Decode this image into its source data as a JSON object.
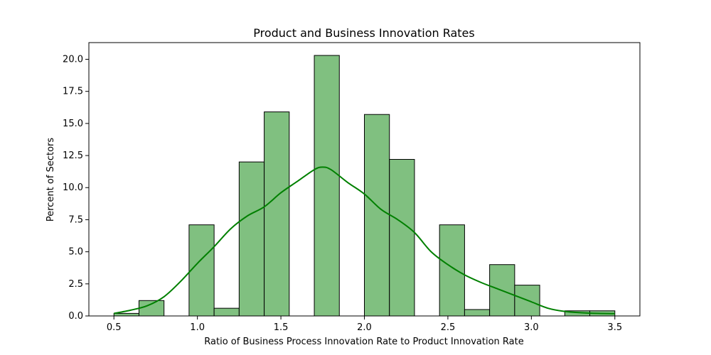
{
  "chart_data": {
    "type": "bar",
    "title": "Product and Business Innovation Rates",
    "xlabel": "Ratio of Business Process Innovation Rate to Product Innovation Rate",
    "ylabel": "Percent of Sectors",
    "xlim": [
      0.35,
      3.65
    ],
    "ylim": [
      0,
      21.3
    ],
    "xticks": [
      0.5,
      1.0,
      1.5,
      2.0,
      2.5,
      3.0,
      3.5
    ],
    "xtick_labels": [
      "0.5",
      "1.0",
      "1.5",
      "2.0",
      "2.5",
      "3.0",
      "3.5"
    ],
    "yticks": [
      0,
      2.5,
      5,
      7.5,
      10,
      12.5,
      15,
      17.5,
      20
    ],
    "ytick_labels": [
      "0.0",
      "2.5",
      "5.0",
      "7.5",
      "10.0",
      "12.5",
      "15.0",
      "17.5",
      "20.0"
    ],
    "bins": [
      {
        "x0": 0.5,
        "x1": 0.65,
        "value": 0.2
      },
      {
        "x0": 0.65,
        "x1": 0.8,
        "value": 1.2
      },
      {
        "x0": 0.8,
        "x1": 0.95,
        "value": 0
      },
      {
        "x0": 0.95,
        "x1": 1.1,
        "value": 7.1
      },
      {
        "x0": 1.1,
        "x1": 1.25,
        "value": 0.6
      },
      {
        "x0": 1.25,
        "x1": 1.4,
        "value": 12.0
      },
      {
        "x0": 1.4,
        "x1": 1.55,
        "value": 15.9
      },
      {
        "x0": 1.55,
        "x1": 1.7,
        "value": 0
      },
      {
        "x0": 1.7,
        "x1": 1.85,
        "value": 20.3
      },
      {
        "x0": 1.85,
        "x1": 2.0,
        "value": 0
      },
      {
        "x0": 2.0,
        "x1": 2.15,
        "value": 15.7
      },
      {
        "x0": 2.15,
        "x1": 2.3,
        "value": 12.2
      },
      {
        "x0": 2.3,
        "x1": 2.45,
        "value": 0
      },
      {
        "x0": 2.45,
        "x1": 2.6,
        "value": 7.1
      },
      {
        "x0": 2.6,
        "x1": 2.75,
        "value": 0.5
      },
      {
        "x0": 2.75,
        "x1": 2.9,
        "value": 4.0
      },
      {
        "x0": 2.9,
        "x1": 3.05,
        "value": 2.4
      },
      {
        "x0": 3.05,
        "x1": 3.2,
        "value": 0
      },
      {
        "x0": 3.2,
        "x1": 3.35,
        "value": 0.4
      },
      {
        "x0": 3.35,
        "x1": 3.5,
        "value": 0.4
      }
    ],
    "kde": {
      "x": [
        0.5,
        0.6,
        0.7,
        0.8,
        0.9,
        1.0,
        1.1,
        1.2,
        1.3,
        1.4,
        1.5,
        1.6,
        1.7,
        1.75,
        1.8,
        1.9,
        2.0,
        2.1,
        2.2,
        2.3,
        2.4,
        2.5,
        2.6,
        2.7,
        2.8,
        2.9,
        3.0,
        3.1,
        3.2,
        3.3,
        3.4,
        3.5
      ],
      "y": [
        0.2,
        0.45,
        0.8,
        1.5,
        2.7,
        4.1,
        5.4,
        6.8,
        7.8,
        8.5,
        9.6,
        10.5,
        11.4,
        11.6,
        11.4,
        10.4,
        9.5,
        8.3,
        7.5,
        6.5,
        5.0,
        4.0,
        3.2,
        2.6,
        2.1,
        1.6,
        1.1,
        0.6,
        0.35,
        0.25,
        0.2,
        0.18
      ]
    },
    "colors": {
      "bar_fill": "#80c080",
      "bar_edge": "#000000",
      "kde_line": "#008000"
    },
    "grid": false,
    "legend": "none"
  }
}
